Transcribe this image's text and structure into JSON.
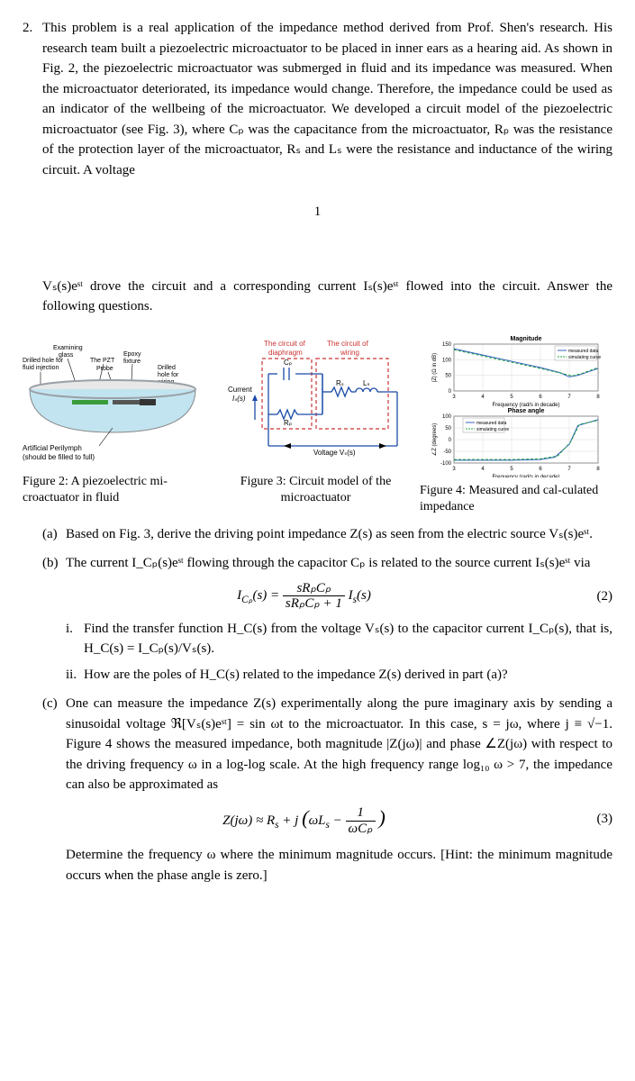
{
  "problem_number": "2.",
  "intro": "This problem is a real application of the impedance method derived from Prof. Shen's research. His research team built a piezoelectric microactuator to be placed in inner ears as a hearing aid. As shown in Fig. 2, the piezoelectric microactuator was submerged in fluid and its impedance was measured. When the microactuator deteriorated, its impedance would change. Therefore, the impedance could be used as an indicator of the wellbeing of the microactuator. We developed a circuit model of the piezoelectric microactuator (see Fig. 3), where Cₚ was the capacitance from the microactuator, Rₚ was the resistance of the protection layer of the microactuator, Rₛ and Lₛ were the resistance and inductance of the wiring circuit. A voltage",
  "page_num": "1",
  "intro2": "Vₛ(s)eˢᵗ drove the circuit and a corresponding current Iₛ(s)eˢᵗ flowed into the circuit. Answer the following questions.",
  "fig2": {
    "caption": "Figure 2: A piezoelectric mi-croactuator in fluid",
    "labels": {
      "drilled_hole": "Drilled hole for\nfluid injection",
      "glass": "glass",
      "examining": "Examining",
      "pzt": "The PZT",
      "epoxy": "Epoxy\nfixture",
      "probe": "Probe",
      "wiring": "Drilled\nhole for\nwiring",
      "perilymph": "Artificial Perilymph\n(should be filled to full)"
    },
    "colors": {
      "fluid": "#c2e4f0",
      "wall": "#9aa0a6",
      "wall_dark": "#6b7278",
      "probe": "#3a9b3a",
      "pzt": "#444444"
    }
  },
  "fig3": {
    "caption": "Figure 3: Circuit model of the microactuator",
    "labels": {
      "box_left": "The circuit of\ndiaphragm",
      "box_right": "The circuit of\nwiring",
      "current": "Current\nIₛ(s)",
      "cp": "Cₚ",
      "rp": "Rₚ",
      "rs": "Rₛ",
      "ls": "Lₛ",
      "vs": "Voltage Vₛ(s)"
    },
    "colors": {
      "box": "#cc3333",
      "wire": "#1a4aa8"
    }
  },
  "fig4": {
    "caption": "Figure 4: Measured and cal-culated impedance",
    "mag": {
      "title": "Magnitude",
      "ylabel": "|Z| (Ω in dB)",
      "xlabel": "Frequency (rad/s in decade)",
      "xlim": [
        3,
        8
      ],
      "ylim": [
        0,
        150
      ],
      "yticks": [
        0,
        50,
        100,
        150
      ],
      "xticks": [
        3,
        4,
        5,
        6,
        7,
        8
      ],
      "legend": [
        "measured data",
        "simulating curve"
      ],
      "measured_color": "#3060c0",
      "sim_color": "#20a040",
      "data_meas": [
        [
          3,
          135
        ],
        [
          4,
          115
        ],
        [
          5,
          95
        ],
        [
          6,
          75
        ],
        [
          6.7,
          58
        ],
        [
          7,
          45
        ],
        [
          7.3,
          50
        ],
        [
          8,
          72
        ]
      ],
      "data_sim": [
        [
          3,
          132
        ],
        [
          4,
          112
        ],
        [
          5,
          92
        ],
        [
          6,
          72
        ],
        [
          6.8,
          55
        ],
        [
          7.1,
          48
        ],
        [
          7.4,
          55
        ],
        [
          8,
          75
        ]
      ]
    },
    "phase": {
      "title": "Phase angle",
      "ylabel": "∠Z (degrees)",
      "xlabel": "Frequency (rad/s in decade)",
      "xlim": [
        3,
        8
      ],
      "ylim": [
        -100,
        100
      ],
      "yticks": [
        -100,
        -50,
        0,
        50,
        100
      ],
      "xticks": [
        3,
        4,
        5,
        6,
        7,
        8
      ],
      "data_meas": [
        [
          3,
          -88
        ],
        [
          5,
          -88
        ],
        [
          6,
          -85
        ],
        [
          6.5,
          -75
        ],
        [
          7,
          -20
        ],
        [
          7.3,
          60
        ],
        [
          8,
          85
        ]
      ],
      "data_sim": [
        [
          3,
          -85
        ],
        [
          5,
          -85
        ],
        [
          6,
          -82
        ],
        [
          6.6,
          -70
        ],
        [
          7.05,
          -10
        ],
        [
          7.35,
          65
        ],
        [
          8,
          82
        ]
      ]
    },
    "grid_color": "#cfcfcf",
    "fontsize": 6
  },
  "parts": {
    "a": "Based on Fig. 3, derive the driving point impedance Z(s) as seen from the electric source Vₛ(s)eˢᵗ.",
    "b_intro": "The current I_Cₚ(s)eˢᵗ flowing through the capacitor Cₚ is related to the source current Iₛ(s)eˢᵗ via",
    "b_i": "Find the transfer function H_C(s) from the voltage Vₛ(s) to the capacitor current I_Cₚ(s), that is, H_C(s) = I_Cₚ(s)/Vₛ(s).",
    "b_ii": "How are the poles of H_C(s) related to the impedance Z(s) derived in part (a)?",
    "c": "One can measure the impedance Z(s) experimentally along the pure imaginary axis by sending a sinusoidal voltage ℜ[Vₛ(s)eˢᵗ] = sin ωt to the microactuator. In this case, s = jω, where j ≡ √−1. Figure 4 shows the measured impedance, both magnitude |Z(jω)| and phase ∠Z(jω) with respect to the driving frequency ω in a log-log scale. At the high frequency range log₁₀ ω > 7, the impedance can also be approximated as",
    "c_after": "Determine the frequency ω where the minimum magnitude occurs. [Hint: the minimum magnitude occurs when the phase angle is zero.]"
  },
  "eq2": {
    "lhs": "I_Cₚ(s) =",
    "num": "sRₚCₚ",
    "den": "sRₚCₚ + 1",
    "rhs": "Iₛ(s)",
    "tag": "(2)"
  },
  "eq3": {
    "body_left": "Z(jω) ≈ Rₛ + j (ωLₛ −",
    "frac_num": "1",
    "frac_den": "ωCₚ",
    "body_right": ")",
    "tag": "(3)"
  }
}
